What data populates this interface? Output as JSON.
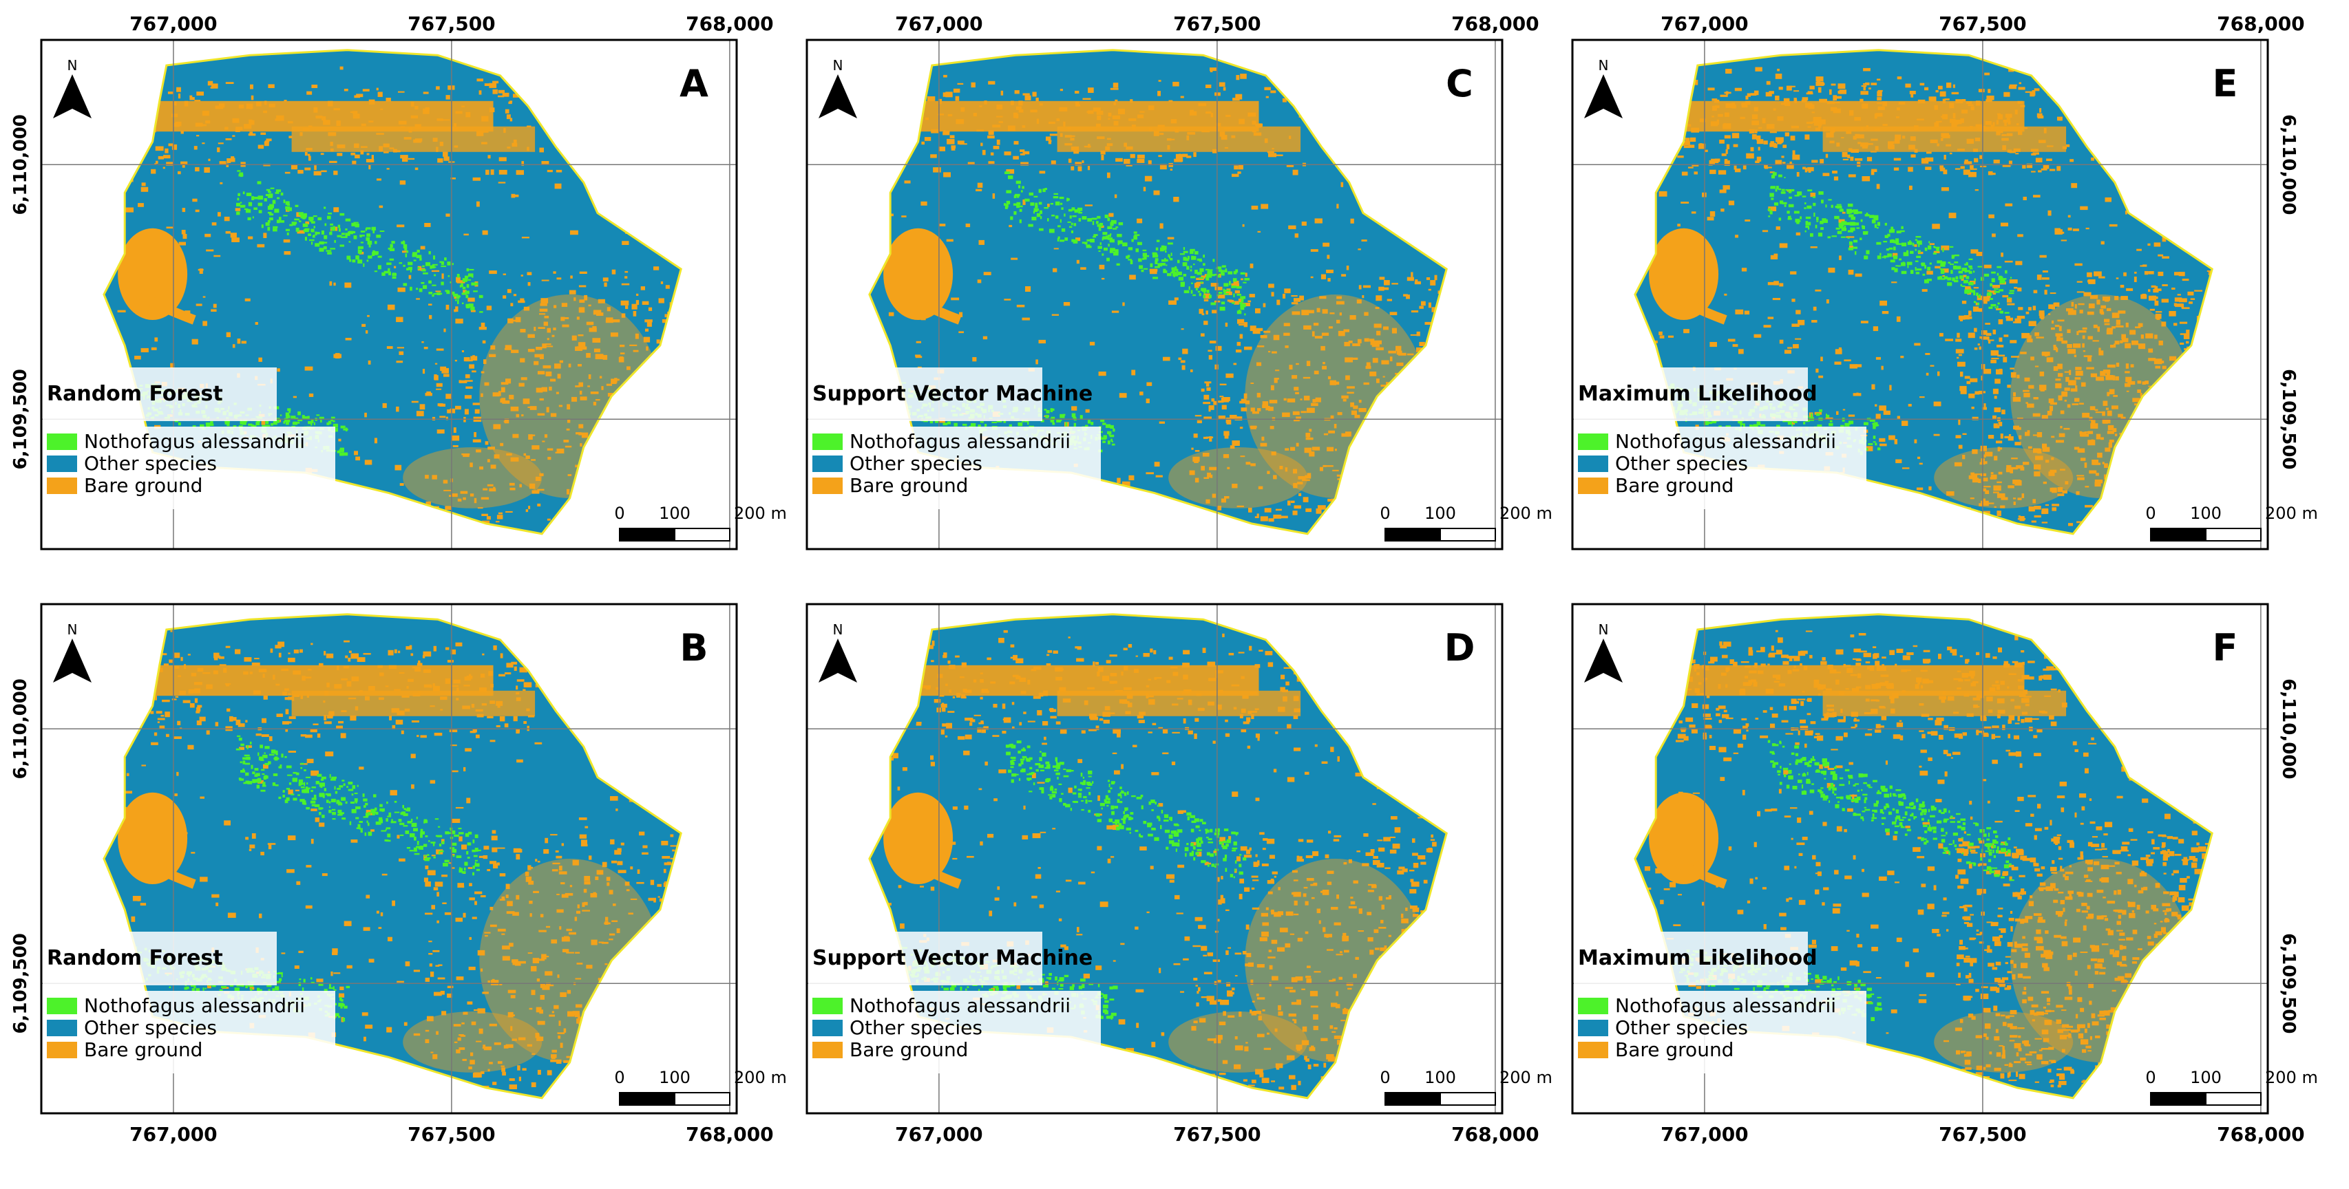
{
  "colors": {
    "nothofagus": "#4df22a",
    "other_species": "#1589b5",
    "bare_ground": "#f4a21a",
    "boundary": "#f0e62a",
    "grid": "#777777",
    "frame": "#000000"
  },
  "x_ticks": [
    "767,000",
    "767,500",
    "768,000"
  ],
  "y_ticks": [
    "6,110,000",
    "6,109,500"
  ],
  "north_label": "N",
  "scale_bar": {
    "labels": [
      "0",
      "100",
      "200 m"
    ]
  },
  "legend_items": [
    {
      "label": "Nothofagus alessandrii",
      "color": "#4df22a"
    },
    {
      "label": "Other species",
      "color": "#1589b5"
    },
    {
      "label": "Bare ground",
      "color": "#f4a21a"
    }
  ],
  "panels": [
    {
      "letter": "A",
      "method": "Random Forest"
    },
    {
      "letter": "C",
      "method": "Support Vector Machine"
    },
    {
      "letter": "E",
      "method": "Maximum Likelihood"
    },
    {
      "letter": "B",
      "method": "Random Forest"
    },
    {
      "letter": "D",
      "method": "Support Vector Machine"
    },
    {
      "letter": "F",
      "method": "Maximum Likelihood"
    }
  ]
}
